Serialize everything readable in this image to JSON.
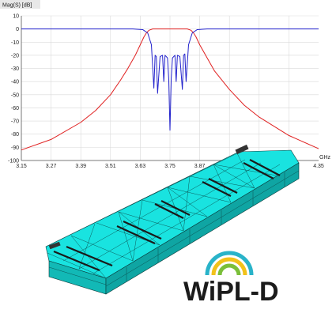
{
  "chart_data": {
    "type": "line",
    "title": "",
    "ylabel": "Mag(S) [dB]",
    "xlabel": "GHz",
    "xlim": [
      3.15,
      4.35
    ],
    "ylim": [
      -100,
      10
    ],
    "grid": true,
    "xticks": [
      "3.15",
      "3.27",
      "3.39",
      "3.51",
      "3.63",
      "3.75",
      "3.87",
      "3.99",
      "4.11",
      "4.23",
      "4.35"
    ],
    "yticks": [
      "10",
      "0",
      "-10",
      "-20",
      "-30",
      "-40",
      "-50",
      "-60",
      "-70",
      "-80",
      "-90",
      "-100"
    ],
    "series": [
      {
        "color": "#e02020",
        "x": [
          3.15,
          3.27,
          3.39,
          3.45,
          3.51,
          3.55,
          3.58,
          3.61,
          3.63,
          3.645,
          3.655,
          3.665,
          3.68,
          3.7,
          3.75,
          3.8,
          3.82,
          3.835,
          3.845,
          3.855,
          3.87,
          3.9,
          3.93,
          3.99,
          4.05,
          4.11,
          4.23,
          4.35
        ],
        "y": [
          -92,
          -84,
          -71,
          -62,
          -50,
          -39,
          -30,
          -20,
          -12,
          -6,
          -3,
          -1,
          0,
          0,
          0,
          0,
          0,
          -1,
          -3,
          -6,
          -12,
          -22,
          -32,
          -46,
          -58,
          -67,
          -81,
          -91
        ]
      },
      {
        "color": "#2222cc",
        "x": [
          3.15,
          3.6,
          3.64,
          3.66,
          3.675,
          3.685,
          3.69,
          3.695,
          3.7,
          3.71,
          3.72,
          3.725,
          3.73,
          3.74,
          3.745,
          3.75,
          3.755,
          3.76,
          3.77,
          3.775,
          3.78,
          3.79,
          3.8,
          3.805,
          3.81,
          3.815,
          3.825,
          3.84,
          3.86,
          3.9,
          4.35
        ],
        "y": [
          0,
          0,
          -0.5,
          -3,
          -12,
          -45,
          -20,
          -21,
          -49,
          -21,
          -20,
          -40,
          -20,
          -22,
          -38,
          -77,
          -38,
          -22,
          -20,
          -40,
          -20,
          -21,
          -46,
          -20,
          -19,
          -40,
          -12,
          -3,
          -0.5,
          0,
          0
        ]
      }
    ]
  },
  "brand": {
    "logo_text": "WiPL-D",
    "colors": [
      "#29b3c9",
      "#f2c21b",
      "#7bbf3a",
      "#1b1b1b"
    ]
  },
  "model": {
    "color": "#19e3e0",
    "edge_color": "#0b3b3b"
  }
}
